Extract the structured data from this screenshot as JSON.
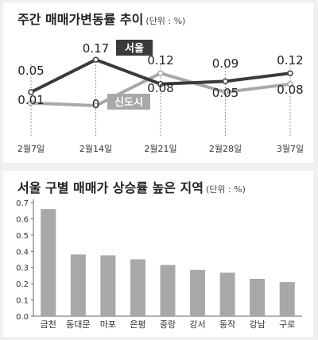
{
  "top": {
    "title": "주간 매매가변동률 추이",
    "unit": "(단위 : %)",
    "chart_data": {
      "type": "line",
      "x": [
        "2월7일",
        "2월14일",
        "2월21일",
        "2월28일",
        "3월7일"
      ],
      "series": [
        {
          "name": "서울",
          "values": [
            0.05,
            0.17,
            0.08,
            0.09,
            0.12
          ],
          "color": "#3a3a3a"
        },
        {
          "name": "신도시",
          "values": [
            0.01,
            0,
            0.12,
            0.05,
            0.08
          ],
          "color": "#a8a8a8"
        }
      ],
      "grid": false,
      "legend": "inline labels"
    }
  },
  "bottom": {
    "title": "서울 구별 매매가 상승률 높은 지역",
    "unit": "(단위 : %)",
    "chart_data": {
      "type": "bar",
      "categories": [
        "금천",
        "동대문",
        "마포",
        "은평",
        "중랑",
        "강서",
        "동작",
        "강남",
        "구로"
      ],
      "values": [
        0.66,
        0.38,
        0.375,
        0.35,
        0.315,
        0.285,
        0.268,
        0.23,
        0.21
      ],
      "ylim": [
        0,
        0.7
      ],
      "yticks": [
        "0.0",
        "0.1",
        "0.2",
        "0.3",
        "0.4",
        "0.5",
        "0.6",
        "0.7"
      ],
      "bar_color": "#a8a8a8",
      "grid": false
    }
  }
}
